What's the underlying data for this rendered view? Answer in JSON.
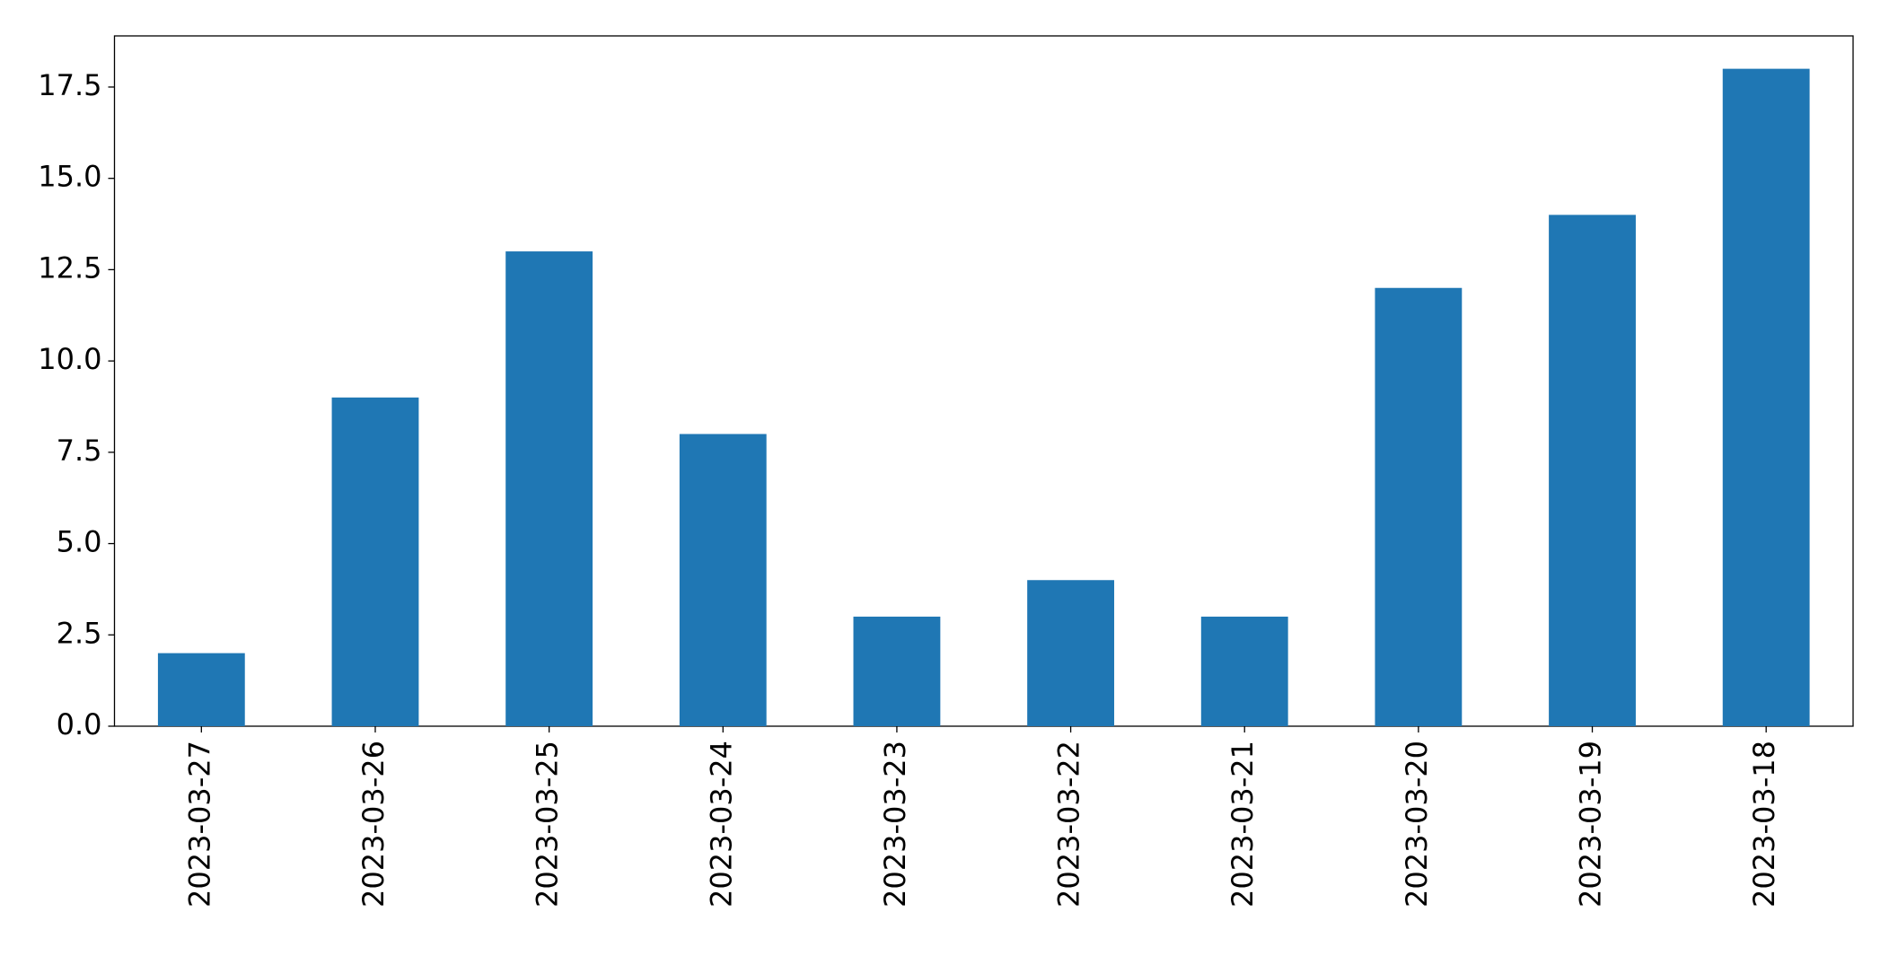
{
  "chart_data": {
    "type": "bar",
    "categories": [
      "2023-03-27",
      "2023-03-26",
      "2023-03-25",
      "2023-03-24",
      "2023-03-23",
      "2023-03-22",
      "2023-03-21",
      "2023-03-20",
      "2023-03-19",
      "2023-03-18"
    ],
    "values": [
      2,
      9,
      13,
      8,
      3,
      4,
      3,
      12,
      14,
      18
    ],
    "color": "#1f77b4",
    "ylim": [
      0,
      18.9
    ],
    "yticks": [
      {
        "value": 0,
        "label": "0.0"
      },
      2.5,
      {
        "value": 5,
        "label": "5.0"
      },
      7.5,
      {
        "value": 10,
        "label": "10.0"
      },
      12.5,
      {
        "value": 15,
        "label": "15.0"
      },
      17.5
    ],
    "grid": false
  }
}
